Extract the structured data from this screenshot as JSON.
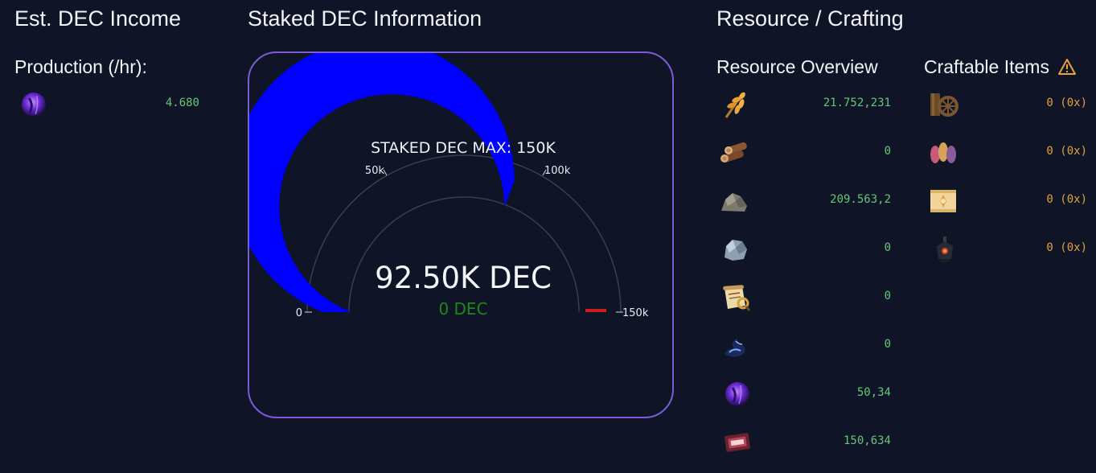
{
  "income": {
    "title": "Est. DEC Income",
    "production_label": "Production (/hr):",
    "items": [
      {
        "icon": "dark-energy-orb-icon",
        "value": "4.680"
      }
    ]
  },
  "staked": {
    "title": "Staked DEC Information",
    "gauge": {
      "max_label": "STAKED DEC MAX: 150K",
      "value_text": "92.50K DEC",
      "delta_text": "0 DEC",
      "min": 0,
      "max": 150000,
      "value": 92500,
      "tick_labels": [
        "0",
        "50k",
        "100k",
        "150k"
      ],
      "bar_color": "#0000ff",
      "threshold_color": "#cc1f1f",
      "delta_color": "#1a8a1a"
    }
  },
  "resources": {
    "title": "Resource / Crafting",
    "overview_label": "Resource Overview",
    "craftable_label": "Craftable Items",
    "warning_icon": "warning-triangle-icon",
    "overview_items": [
      {
        "icon": "grain-icon",
        "value": "21.752,231"
      },
      {
        "icon": "wood-icon",
        "value": "0"
      },
      {
        "icon": "stone-icon",
        "value": "209.563,2"
      },
      {
        "icon": "iron-icon",
        "value": "0"
      },
      {
        "icon": "research-scroll-icon",
        "value": "0"
      },
      {
        "icon": "aura-icon",
        "value": "0"
      },
      {
        "icon": "dark-energy-orb-icon",
        "value": "50,34"
      },
      {
        "icon": "voucher-icon",
        "value": "150,634"
      }
    ],
    "craftable_items": [
      {
        "icon": "construction-tools-icon",
        "value": "0 (0x)"
      },
      {
        "icon": "seeds-icon",
        "value": "0 (0x)"
      },
      {
        "icon": "blueprint-icon",
        "value": "0 (0x)"
      },
      {
        "icon": "totem-icon",
        "value": "0 (0x)"
      }
    ]
  }
}
